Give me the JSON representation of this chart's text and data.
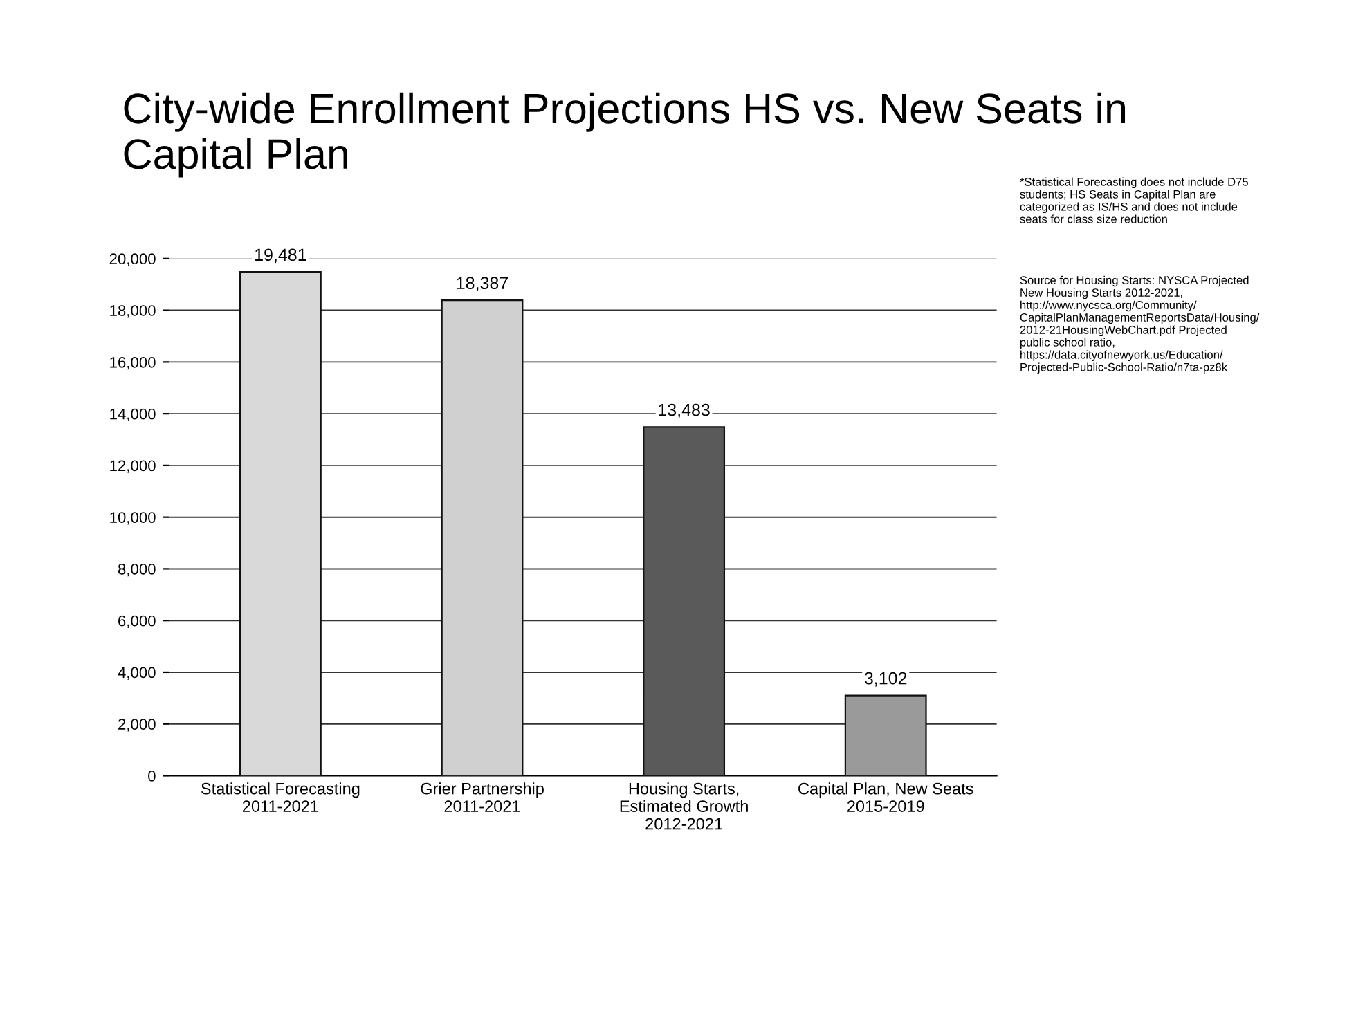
{
  "chart_data": {
    "type": "bar",
    "title": "City-wide Enrollment Projections HS vs. New Seats in\nCapital Plan",
    "categories": [
      "Statistical Forecasting\n2011-2021",
      "Grier Partnership\n2011-2021",
      "Housing Starts,\nEstimated Growth\n2012-2021",
      "Capital Plan, New Seats\n2015-2019"
    ],
    "values": [
      19481,
      18387,
      13483,
      3102
    ],
    "colors": [
      "#d9d9d9",
      "#d0d0d0",
      "#5a5a5a",
      "#9a9a9a"
    ],
    "value_labels": [
      "19,481",
      "18,387",
      "13,483",
      "3,102"
    ],
    "ylim": [
      0,
      20000
    ],
    "yticks": [
      {
        "value": 0,
        "label": "0"
      },
      {
        "value": 2000,
        "label": "2,000"
      },
      {
        "value": 4000,
        "label": "4,000"
      },
      {
        "value": 6000,
        "label": "6,000"
      },
      {
        "value": 8000,
        "label": "8,000"
      },
      {
        "value": 10000,
        "label": "10,000"
      },
      {
        "value": 12000,
        "label": "12,000"
      },
      {
        "value": 14000,
        "label": "14,000"
      },
      {
        "value": 16000,
        "label": "16,000"
      },
      {
        "value": 18000,
        "label": "18,000"
      },
      {
        "value": 20000,
        "label": "20,000"
      }
    ],
    "grid": "y",
    "annotations": [
      "*Statistical Forecasting does not include D75\nstudents; HS Seats in Capital Plan are\ncategorized as IS/HS and does not include\nseats for class size reduction",
      "Source for Housing Starts: NYSCA Projected\nNew Housing Starts 2012-2021,\nhttp://www.nycsca.org/Community/\nCapitalPlanManagementReportsData/Housing/\n2012-21HousingWebChart.pdf Projected\npublic school ratio,\nhttps://data.cityofnewyork.us/Education/\nProjected-Public-School-Ratio/n7ta-pz8k"
    ]
  }
}
